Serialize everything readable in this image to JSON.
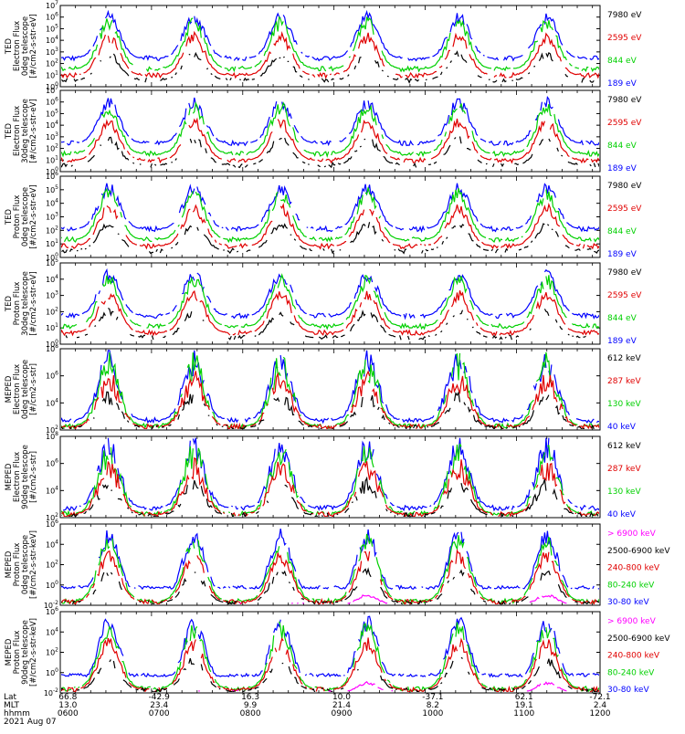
{
  "chart_data": [
    {
      "type": "line",
      "ylabel": [
        "TED",
        "Electron Flux",
        "0deg telescope",
        "[#/cm2-s-str-eV]"
      ],
      "log_y": true,
      "ylim": [
        1,
        10000000
      ],
      "y_ticks": [
        "10^0",
        "10^1",
        "10^2",
        "10^3",
        "10^4",
        "10^5",
        "10^6",
        "10^7"
      ],
      "legend": [
        {
          "label": "7980 eV",
          "color": "#000000"
        },
        {
          "label": "2595 eV",
          "color": "#e00000"
        },
        {
          "label": "844 eV",
          "color": "#00d000"
        },
        {
          "label": "189 eV",
          "color": "#0000ff"
        }
      ]
    },
    {
      "type": "line",
      "ylabel": [
        "TED",
        "Electron Flux",
        "30deg telescope",
        "[#/cm2-s-str-eV]"
      ],
      "log_y": true,
      "ylim": [
        1,
        10000000
      ],
      "y_ticks": [
        "10^0",
        "10^1",
        "10^2",
        "10^3",
        "10^4",
        "10^5",
        "10^6",
        "10^7"
      ],
      "legend": [
        {
          "label": "7980 eV",
          "color": "#000000"
        },
        {
          "label": "2595 eV",
          "color": "#e00000"
        },
        {
          "label": "844 eV",
          "color": "#00d000"
        },
        {
          "label": "189 eV",
          "color": "#0000ff"
        }
      ]
    },
    {
      "type": "line",
      "ylabel": [
        "TED",
        "Proton Flux",
        "0deg telescope",
        "[#/cm2-s-str-eV]"
      ],
      "log_y": true,
      "ylim": [
        1,
        1000000
      ],
      "y_ticks": [
        "10^0",
        "10^1",
        "10^2",
        "10^3",
        "10^4",
        "10^5",
        "10^6"
      ],
      "legend": [
        {
          "label": "7980 eV",
          "color": "#000000"
        },
        {
          "label": "2595 eV",
          "color": "#e00000"
        },
        {
          "label": "844 eV",
          "color": "#00d000"
        },
        {
          "label": "189 eV",
          "color": "#0000ff"
        }
      ]
    },
    {
      "type": "line",
      "ylabel": [
        "TED",
        "Proton Flux",
        "30deg telescope",
        "[#/cm2-s-str-eV]"
      ],
      "log_y": true,
      "ylim": [
        1,
        100000
      ],
      "y_ticks": [
        "10^0",
        "10^1",
        "10^2",
        "10^3",
        "10^4",
        "10^5"
      ],
      "legend": [
        {
          "label": "7980 eV",
          "color": "#000000"
        },
        {
          "label": "2595 eV",
          "color": "#e00000"
        },
        {
          "label": "844 eV",
          "color": "#00d000"
        },
        {
          "label": "189 eV",
          "color": "#0000ff"
        }
      ]
    },
    {
      "type": "line",
      "ylabel": [
        "MEPED",
        "Electron Flux",
        "0deg telescope",
        "[#/cm2-s-str]"
      ],
      "log_y": true,
      "ylim": [
        100,
        100000000
      ],
      "y_ticks": [
        "10^2",
        "10^4",
        "10^6",
        "10^8"
      ],
      "legend": [
        {
          "label": "612 keV",
          "color": "#000000"
        },
        {
          "label": "287 keV",
          "color": "#e00000"
        },
        {
          "label": "130 keV",
          "color": "#00d000"
        },
        {
          "label": "40 keV",
          "color": "#0000ff"
        }
      ]
    },
    {
      "type": "line",
      "ylabel": [
        "MEPED",
        "Electron Flux",
        "90deg telescope",
        "[#/cm2-s-str]"
      ],
      "log_y": true,
      "ylim": [
        100,
        100000000
      ],
      "y_ticks": [
        "10^2",
        "10^4",
        "10^6",
        "10^8"
      ],
      "legend": [
        {
          "label": "612 keV",
          "color": "#000000"
        },
        {
          "label": "287 keV",
          "color": "#e00000"
        },
        {
          "label": "130 keV",
          "color": "#00d000"
        },
        {
          "label": "40 keV",
          "color": "#0000ff"
        }
      ]
    },
    {
      "type": "line",
      "ylabel": [
        "MEPED",
        "Proton Flux",
        "0deg telescope",
        "[#/cm2-s-str-keV]"
      ],
      "log_y": true,
      "ylim": [
        0.01,
        1000000
      ],
      "y_ticks": [
        "10^-2",
        "10^0",
        "10^2",
        "10^4",
        "10^6"
      ],
      "legend": [
        {
          "label": "> 6900 keV",
          "color": "#ff00ff"
        },
        {
          "label": "2500-6900 keV",
          "color": "#000000"
        },
        {
          "label": "240-800 keV",
          "color": "#e00000"
        },
        {
          "label": "80-240 keV",
          "color": "#00d000"
        },
        {
          "label": "30-80 keV",
          "color": "#0000ff"
        }
      ]
    },
    {
      "type": "line",
      "ylabel": [
        "MEPED",
        "Proton Flux",
        "90deg telescope",
        "[#/cm2-s-str-keV]"
      ],
      "log_y": true,
      "ylim": [
        0.01,
        1000000
      ],
      "y_ticks": [
        "10^-2",
        "10^0",
        "10^2",
        "10^4",
        "10^6"
      ],
      "legend": [
        {
          "label": "> 6900 keV",
          "color": "#ff00ff"
        },
        {
          "label": "2500-6900 keV",
          "color": "#000000"
        },
        {
          "label": "240-800 keV",
          "color": "#e00000"
        },
        {
          "label": "80-240 keV",
          "color": "#00d000"
        },
        {
          "label": "30-80 keV",
          "color": "#0000ff"
        }
      ]
    }
  ],
  "x_axis": {
    "row_labels": [
      "Lat",
      "MLT",
      "hhmm",
      "2021 Aug 07"
    ],
    "time_range": [
      "0605",
      "1200"
    ],
    "lat": [
      "66.8",
      "-42.9",
      "16.3",
      "10.0",
      "-37.1",
      "62.1",
      "-72.1"
    ],
    "mlt": [
      "13.0",
      "23.4",
      "9.9",
      "21.4",
      "8.2",
      "19.1",
      "2.4"
    ],
    "hhmm": [
      "0600",
      "0700",
      "0800",
      "0900",
      "1000",
      "1100",
      "1200"
    ]
  }
}
